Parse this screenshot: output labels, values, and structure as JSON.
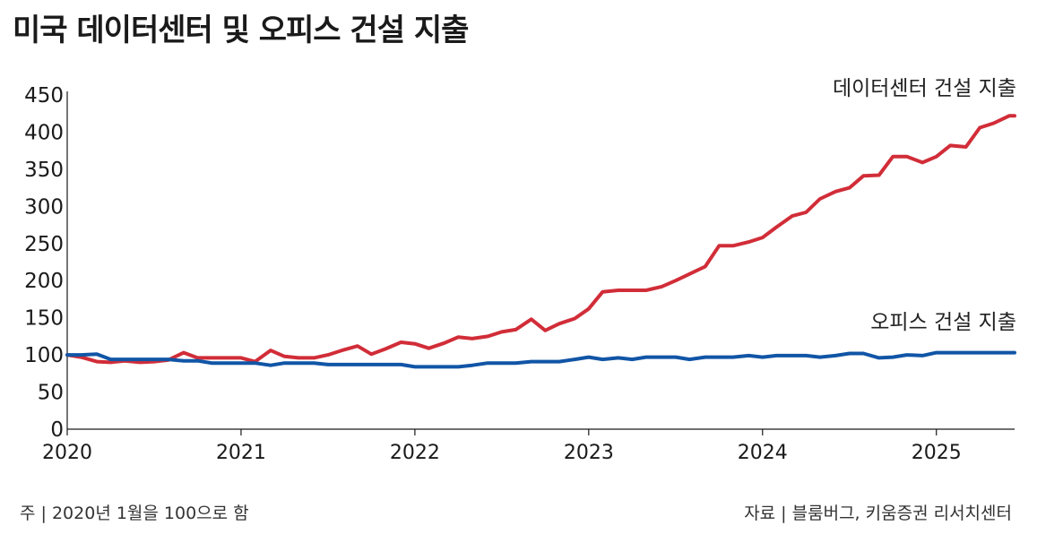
{
  "title": "미국 데이터센터 및 오피스 건설 지출",
  "footnote_left": "주 | 2020년 1월을 100으로 함",
  "footnote_right": "자료 | 블룸버그, 키움증권 리서치센터",
  "chart_data": {
    "type": "line",
    "title": "미국 데이터센터 및 오피스 건설 지출",
    "xlabel": "",
    "ylabel": "",
    "ylim": [
      0,
      450
    ],
    "yticks": [
      0,
      50,
      100,
      150,
      200,
      250,
      300,
      350,
      400,
      450
    ],
    "xlim": [
      2020,
      2025.45
    ],
    "xticks": [
      2020,
      2021,
      2022,
      2023,
      2024,
      2025
    ],
    "xtick_labels": [
      "2020",
      "2021",
      "2022",
      "2023",
      "2024",
      "2025"
    ],
    "grid": false,
    "series": [
      {
        "name": "데이터센터 건설 지출",
        "color": "#d12d38",
        "points": [
          [
            2020.0,
            100
          ],
          [
            2020.08,
            97
          ],
          [
            2020.17,
            91
          ],
          [
            2020.25,
            90
          ],
          [
            2020.33,
            92
          ],
          [
            2020.42,
            90
          ],
          [
            2020.5,
            91
          ],
          [
            2020.58,
            93
          ],
          [
            2020.67,
            103
          ],
          [
            2020.75,
            96
          ],
          [
            2020.83,
            96
          ],
          [
            2020.92,
            96
          ],
          [
            2021.0,
            96
          ],
          [
            2021.08,
            91
          ],
          [
            2021.17,
            106
          ],
          [
            2021.25,
            98
          ],
          [
            2021.33,
            96
          ],
          [
            2021.42,
            96
          ],
          [
            2021.5,
            100
          ],
          [
            2021.58,
            106
          ],
          [
            2021.67,
            112
          ],
          [
            2021.75,
            101
          ],
          [
            2021.83,
            108
          ],
          [
            2021.92,
            117
          ],
          [
            2022.0,
            115
          ],
          [
            2022.08,
            109
          ],
          [
            2022.17,
            116
          ],
          [
            2022.25,
            124
          ],
          [
            2022.33,
            122
          ],
          [
            2022.42,
            125
          ],
          [
            2022.5,
            131
          ],
          [
            2022.58,
            134
          ],
          [
            2022.67,
            148
          ],
          [
            2022.75,
            133
          ],
          [
            2022.83,
            142
          ],
          [
            2022.92,
            149
          ],
          [
            2023.0,
            162
          ],
          [
            2023.08,
            185
          ],
          [
            2023.17,
            187
          ],
          [
            2023.25,
            187
          ],
          [
            2023.33,
            187
          ],
          [
            2023.42,
            192
          ],
          [
            2023.5,
            200
          ],
          [
            2023.58,
            209
          ],
          [
            2023.67,
            219
          ],
          [
            2023.75,
            247
          ],
          [
            2023.83,
            247
          ],
          [
            2023.92,
            252
          ],
          [
            2024.0,
            258
          ],
          [
            2024.08,
            272
          ],
          [
            2024.17,
            287
          ],
          [
            2024.25,
            292
          ],
          [
            2024.33,
            310
          ],
          [
            2024.42,
            320
          ],
          [
            2024.5,
            325
          ],
          [
            2024.58,
            341
          ],
          [
            2024.67,
            342
          ],
          [
            2024.75,
            367
          ],
          [
            2024.83,
            367
          ],
          [
            2024.92,
            359
          ],
          [
            2025.0,
            367
          ],
          [
            2025.08,
            382
          ],
          [
            2025.17,
            380
          ],
          [
            2025.25,
            406
          ],
          [
            2025.33,
            412
          ],
          [
            2025.42,
            422
          ],
          [
            2025.45,
            422
          ]
        ]
      },
      {
        "name": "오피스 건설 지출",
        "color": "#1155a6",
        "points": [
          [
            2020.0,
            100
          ],
          [
            2020.08,
            100
          ],
          [
            2020.17,
            101
          ],
          [
            2020.25,
            94
          ],
          [
            2020.33,
            94
          ],
          [
            2020.42,
            94
          ],
          [
            2020.5,
            94
          ],
          [
            2020.58,
            94
          ],
          [
            2020.67,
            92
          ],
          [
            2020.75,
            92
          ],
          [
            2020.83,
            89
          ],
          [
            2020.92,
            89
          ],
          [
            2021.0,
            89
          ],
          [
            2021.08,
            89
          ],
          [
            2021.17,
            86
          ],
          [
            2021.25,
            89
          ],
          [
            2021.33,
            89
          ],
          [
            2021.42,
            89
          ],
          [
            2021.5,
            87
          ],
          [
            2021.58,
            87
          ],
          [
            2021.67,
            87
          ],
          [
            2021.75,
            87
          ],
          [
            2021.83,
            87
          ],
          [
            2021.92,
            87
          ],
          [
            2022.0,
            84
          ],
          [
            2022.08,
            84
          ],
          [
            2022.17,
            84
          ],
          [
            2022.25,
            84
          ],
          [
            2022.33,
            86
          ],
          [
            2022.42,
            89
          ],
          [
            2022.5,
            89
          ],
          [
            2022.58,
            89
          ],
          [
            2022.67,
            91
          ],
          [
            2022.75,
            91
          ],
          [
            2022.83,
            91
          ],
          [
            2022.92,
            94
          ],
          [
            2023.0,
            97
          ],
          [
            2023.08,
            94
          ],
          [
            2023.17,
            96
          ],
          [
            2023.25,
            94
          ],
          [
            2023.33,
            97
          ],
          [
            2023.42,
            97
          ],
          [
            2023.5,
            97
          ],
          [
            2023.58,
            94
          ],
          [
            2023.67,
            97
          ],
          [
            2023.75,
            97
          ],
          [
            2023.83,
            97
          ],
          [
            2023.92,
            99
          ],
          [
            2024.0,
            97
          ],
          [
            2024.08,
            99
          ],
          [
            2024.17,
            99
          ],
          [
            2024.25,
            99
          ],
          [
            2024.33,
            97
          ],
          [
            2024.42,
            99
          ],
          [
            2024.5,
            102
          ],
          [
            2024.58,
            102
          ],
          [
            2024.67,
            96
          ],
          [
            2024.75,
            97
          ],
          [
            2024.83,
            100
          ],
          [
            2024.92,
            99
          ],
          [
            2025.0,
            103
          ],
          [
            2025.08,
            103
          ],
          [
            2025.17,
            103
          ],
          [
            2025.25,
            103
          ],
          [
            2025.33,
            103
          ],
          [
            2025.42,
            103
          ],
          [
            2025.45,
            103
          ]
        ]
      }
    ]
  }
}
